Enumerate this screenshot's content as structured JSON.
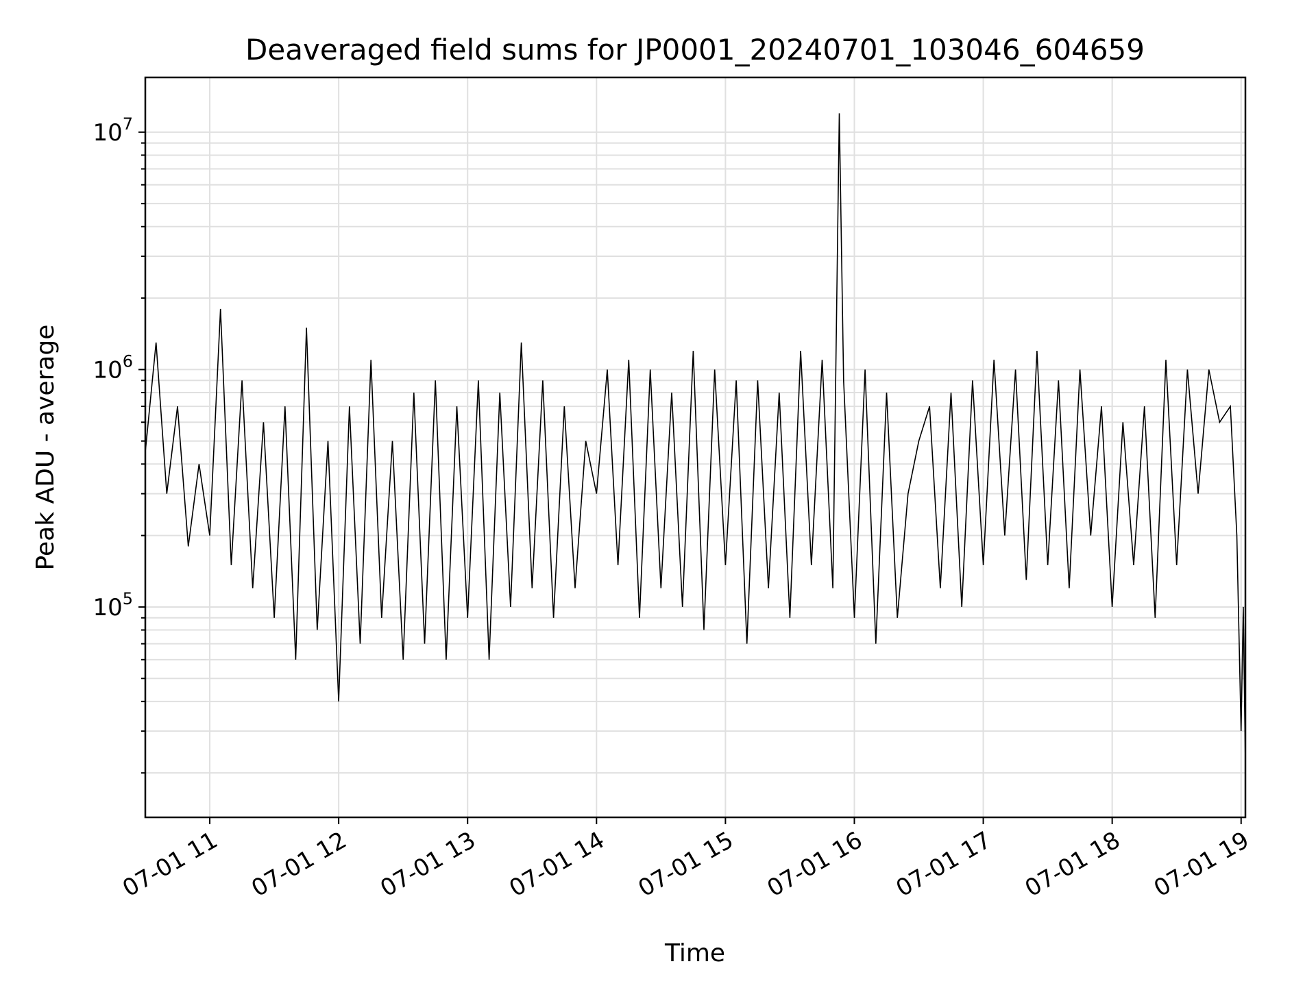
{
  "chart_data": {
    "type": "line",
    "title": "Deaveraged field sums for JP0001_20240701_103046_604659",
    "xlabel": "Time",
    "ylabel": "Peak ADU - average",
    "yscale": "log",
    "ylim": [
      13000,
      17000000
    ],
    "xlim": [
      "2024-07-01 10:30",
      "2024-07-01 19:02"
    ],
    "grid": true,
    "line_color": "#000000",
    "x_ticks": [
      {
        "x": "2024-07-01 11:00",
        "label": "07-01 11"
      },
      {
        "x": "2024-07-01 12:00",
        "label": "07-01 12"
      },
      {
        "x": "2024-07-01 13:00",
        "label": "07-01 13"
      },
      {
        "x": "2024-07-01 14:00",
        "label": "07-01 14"
      },
      {
        "x": "2024-07-01 15:00",
        "label": "07-01 15"
      },
      {
        "x": "2024-07-01 16:00",
        "label": "07-01 16"
      },
      {
        "x": "2024-07-01 17:00",
        "label": "07-01 17"
      },
      {
        "x": "2024-07-01 18:00",
        "label": "07-01 18"
      },
      {
        "x": "2024-07-01 19:00",
        "label": "07-01 19"
      }
    ],
    "y_ticks": [
      {
        "value": 100000,
        "base": "10",
        "exp": "5"
      },
      {
        "value": 1000000,
        "base": "10",
        "exp": "6"
      },
      {
        "value": 10000000,
        "base": "10",
        "exp": "7"
      }
    ],
    "series": [
      {
        "x": [
          "2024-07-01 10:30",
          "2024-07-01 10:35",
          "2024-07-01 10:40",
          "2024-07-01 10:45",
          "2024-07-01 10:50",
          "2024-07-01 10:55",
          "2024-07-01 11:00",
          "2024-07-01 11:05",
          "2024-07-01 11:10",
          "2024-07-01 11:15",
          "2024-07-01 11:20",
          "2024-07-01 11:25",
          "2024-07-01 11:30",
          "2024-07-01 11:35",
          "2024-07-01 11:40",
          "2024-07-01 11:45",
          "2024-07-01 11:50",
          "2024-07-01 11:55",
          "2024-07-01 12:00",
          "2024-07-01 12:05",
          "2024-07-01 12:10",
          "2024-07-01 12:15",
          "2024-07-01 12:20",
          "2024-07-01 12:25",
          "2024-07-01 12:30",
          "2024-07-01 12:35",
          "2024-07-01 12:40",
          "2024-07-01 12:45",
          "2024-07-01 12:50",
          "2024-07-01 12:55",
          "2024-07-01 13:00",
          "2024-07-01 13:05",
          "2024-07-01 13:10",
          "2024-07-01 13:15",
          "2024-07-01 13:20",
          "2024-07-01 13:25",
          "2024-07-01 13:30",
          "2024-07-01 13:35",
          "2024-07-01 13:40",
          "2024-07-01 13:45",
          "2024-07-01 13:50",
          "2024-07-01 13:55",
          "2024-07-01 14:00",
          "2024-07-01 14:05",
          "2024-07-01 14:10",
          "2024-07-01 14:15",
          "2024-07-01 14:20",
          "2024-07-01 14:25",
          "2024-07-01 14:30",
          "2024-07-01 14:35",
          "2024-07-01 14:40",
          "2024-07-01 14:45",
          "2024-07-01 14:50",
          "2024-07-01 14:55",
          "2024-07-01 15:00",
          "2024-07-01 15:05",
          "2024-07-01 15:10",
          "2024-07-01 15:15",
          "2024-07-01 15:20",
          "2024-07-01 15:25",
          "2024-07-01 15:30",
          "2024-07-01 15:35",
          "2024-07-01 15:40",
          "2024-07-01 15:45",
          "2024-07-01 15:50",
          "2024-07-01 15:53",
          "2024-07-01 15:55",
          "2024-07-01 16:00",
          "2024-07-01 16:05",
          "2024-07-01 16:10",
          "2024-07-01 16:15",
          "2024-07-01 16:20",
          "2024-07-01 16:25",
          "2024-07-01 16:30",
          "2024-07-01 16:35",
          "2024-07-01 16:40",
          "2024-07-01 16:45",
          "2024-07-01 16:50",
          "2024-07-01 16:55",
          "2024-07-01 17:00",
          "2024-07-01 17:05",
          "2024-07-01 17:10",
          "2024-07-01 17:15",
          "2024-07-01 17:20",
          "2024-07-01 17:25",
          "2024-07-01 17:30",
          "2024-07-01 17:35",
          "2024-07-01 17:40",
          "2024-07-01 17:45",
          "2024-07-01 17:50",
          "2024-07-01 17:55",
          "2024-07-01 18:00",
          "2024-07-01 18:05",
          "2024-07-01 18:10",
          "2024-07-01 18:15",
          "2024-07-01 18:20",
          "2024-07-01 18:25",
          "2024-07-01 18:30",
          "2024-07-01 18:35",
          "2024-07-01 18:40",
          "2024-07-01 18:45",
          "2024-07-01 18:50",
          "2024-07-01 18:55",
          "2024-07-01 18:58",
          "2024-07-01 19:00",
          "2024-07-01 19:01",
          "2024-07-01 19:02"
        ],
        "y": [
          450000,
          1300000,
          300000,
          700000,
          180000,
          400000,
          200000,
          1800000,
          150000,
          900000,
          120000,
          600000,
          90000,
          700000,
          60000,
          1500000,
          80000,
          500000,
          40000,
          700000,
          70000,
          1100000,
          90000,
          500000,
          60000,
          800000,
          70000,
          900000,
          60000,
          700000,
          90000,
          900000,
          60000,
          800000,
          100000,
          1300000,
          120000,
          900000,
          90000,
          700000,
          120000,
          500000,
          300000,
          1000000,
          150000,
          1100000,
          90000,
          1000000,
          120000,
          800000,
          100000,
          1200000,
          80000,
          1000000,
          150000,
          900000,
          70000,
          900000,
          120000,
          800000,
          90000,
          1200000,
          150000,
          1100000,
          120000,
          12000000,
          900000,
          90000,
          1000000,
          70000,
          800000,
          90000,
          300000,
          500000,
          700000,
          120000,
          800000,
          100000,
          900000,
          150000,
          1100000,
          200000,
          1000000,
          130000,
          1200000,
          150000,
          900000,
          120000,
          1000000,
          200000,
          700000,
          100000,
          600000,
          150000,
          700000,
          90000,
          1100000,
          150000,
          1000000,
          300000,
          1000000,
          600000,
          700000,
          200000,
          30000,
          100000,
          22000
        ]
      }
    ]
  }
}
